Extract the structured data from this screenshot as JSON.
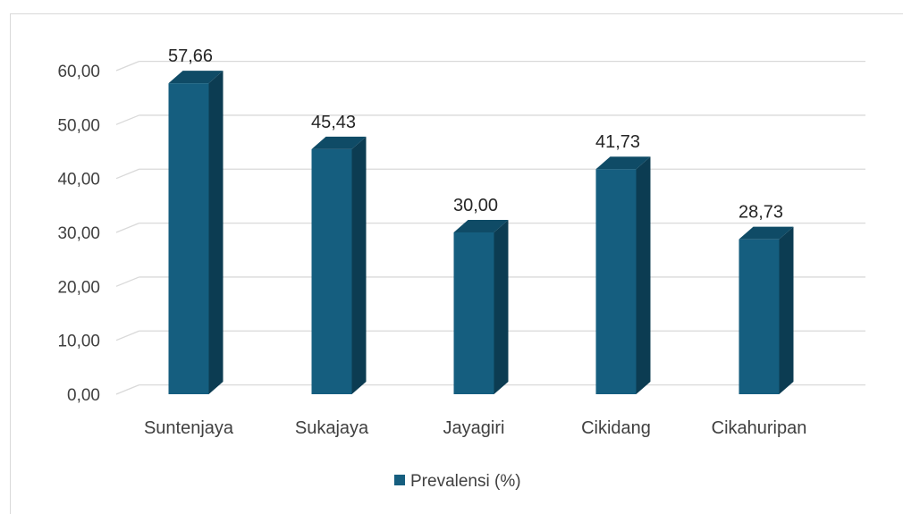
{
  "chart_data": {
    "type": "bar",
    "categories": [
      "Suntenjaya",
      "Sukajaya",
      "Jayagiri",
      "Cikidang",
      "Cikahuripan"
    ],
    "series": [
      {
        "name": "Prevalensi (%)",
        "values": [
          57.66,
          45.43,
          30.0,
          41.73,
          28.73
        ],
        "color": "#155E7F"
      }
    ],
    "data_labels": [
      "57,66",
      "45,43",
      "30,00",
      "41,73",
      "28,73"
    ],
    "y_ticks": [
      "0,00",
      "10,00",
      "20,00",
      "30,00",
      "40,00",
      "50,00",
      "60,00"
    ],
    "ylim": [
      0,
      60
    ],
    "grid": true,
    "legend_position": "bottom",
    "style": "3d-column",
    "colors": {
      "bar_front": "#155E7F",
      "bar_side": "#0C3C52",
      "bar_top": "#0F4B66",
      "grid": "#d9d9d9",
      "text": "#404040"
    }
  }
}
